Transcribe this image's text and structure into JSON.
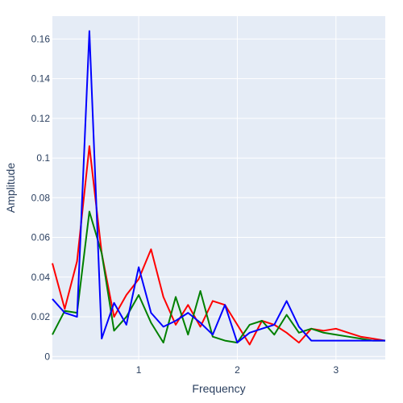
{
  "chart_data": {
    "type": "line",
    "title": "",
    "xlabel": "Frequency",
    "ylabel": "Amplitude",
    "xlim": [
      0.125,
      3.5
    ],
    "ylim": [
      -0.0015,
      0.1715
    ],
    "x_ticks": [
      1,
      2,
      3
    ],
    "y_ticks": [
      0,
      0.02,
      0.04,
      0.06,
      0.08,
      0.1,
      0.12,
      0.14,
      0.16
    ],
    "y_tick_labels": [
      "0",
      "0.02",
      "0.04",
      "0.06",
      "0.08",
      "0.1",
      "0.12",
      "0.14",
      "0.16"
    ],
    "grid": true,
    "legend": "none",
    "colors": {
      "plot_bg": "#e5ecf6",
      "grid": "#ffffff",
      "text": "#2a3f5f"
    },
    "x": [
      0.125,
      0.25,
      0.375,
      0.5,
      0.625,
      0.75,
      0.875,
      1.0,
      1.125,
      1.25,
      1.375,
      1.5,
      1.625,
      1.75,
      1.875,
      2.0,
      2.125,
      2.25,
      2.375,
      2.5,
      2.625,
      2.75,
      2.875,
      3.0,
      3.125,
      3.25,
      3.375,
      3.5
    ],
    "series": [
      {
        "color": "#ff0000",
        "values": [
          0.047,
          0.024,
          0.048,
          0.106,
          0.052,
          0.02,
          0.031,
          0.039,
          0.054,
          0.03,
          0.016,
          0.026,
          0.015,
          0.028,
          0.026,
          0.016,
          0.006,
          0.018,
          0.016,
          0.012,
          0.007,
          0.014,
          0.013,
          0.014,
          0.012,
          0.01,
          0.009,
          0.008
        ]
      },
      {
        "color": "#008000",
        "values": [
          0.011,
          0.023,
          0.022,
          0.073,
          0.052,
          0.013,
          0.02,
          0.031,
          0.017,
          0.007,
          0.03,
          0.011,
          0.033,
          0.01,
          0.008,
          0.007,
          0.016,
          0.018,
          0.011,
          0.021,
          0.012,
          0.014,
          0.012,
          0.011,
          0.01,
          0.009,
          0.008,
          0.008
        ]
      },
      {
        "color": "#0000ff",
        "values": [
          0.029,
          0.022,
          0.02,
          0.164,
          0.009,
          0.027,
          0.016,
          0.045,
          0.022,
          0.015,
          0.018,
          0.022,
          0.017,
          0.011,
          0.026,
          0.007,
          0.012,
          0.014,
          0.016,
          0.028,
          0.015,
          0.008,
          0.008,
          0.008,
          0.008,
          0.008,
          0.008,
          0.008
        ]
      }
    ]
  }
}
